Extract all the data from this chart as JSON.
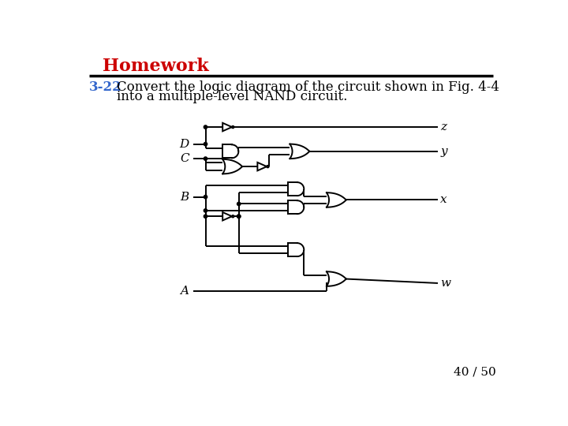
{
  "title": "Homework",
  "title_color": "#CC0000",
  "prob_num": "3-22",
  "prob_num_color": "#3366CC",
  "prob_text1": "Convert the logic diagram of the circuit shown in Fig. 4-4",
  "prob_text2": "into a multiple-level NAND circuit.",
  "page": "40 / 50",
  "bg": "#FFFFFF",
  "lw": 1.4,
  "gate_lw": 1.4,
  "title_fs": 16,
  "prob_fs": 12,
  "label_fs": 11,
  "page_fs": 11
}
